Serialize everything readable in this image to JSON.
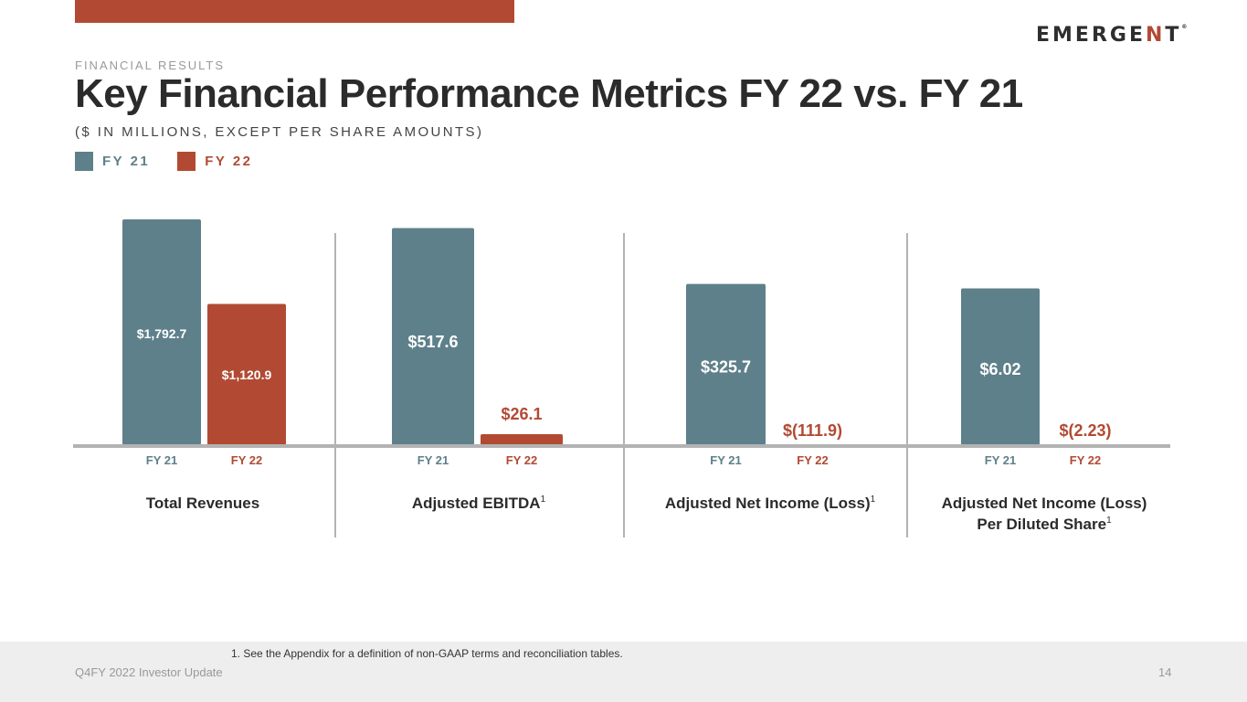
{
  "header": {
    "eyebrow": "FINANCIAL RESULTS",
    "title": "Key Financial Performance Metrics FY 22 vs. FY 21",
    "subtitle": "($ IN MILLIONS, EXCEPT PER SHARE AMOUNTS)",
    "logo_prefix": "EMERGE",
    "logo_accent": "N",
    "logo_suffix": "T"
  },
  "colors": {
    "fy21": "#5e808a",
    "fy22": "#b24a33",
    "baseline": "#b3b3b3",
    "divider": "#b3b3b3"
  },
  "chart_data": {
    "type": "bar",
    "title": "Key Financial Performance Metrics FY 22 vs. FY 21",
    "units": "$ in millions, except per share amounts",
    "legend": [
      "FY 21",
      "FY 22"
    ],
    "legend_position": "top-left",
    "grid": false,
    "series_names": [
      "FY 21",
      "FY 22"
    ],
    "panels": [
      {
        "category": "Total Revenues",
        "category_line2": "",
        "superscript": "",
        "values": [
          1792.7,
          1120.9
        ],
        "labels": [
          "$1,792.7",
          "$1,120.9"
        ],
        "ticks": [
          "FY 21",
          "FY 22"
        ],
        "label_inside": [
          true,
          true
        ]
      },
      {
        "category": "Adjusted  EBITDA",
        "category_line2": "",
        "superscript": "1",
        "values": [
          517.6,
          26.1
        ],
        "labels": [
          "$517.6",
          "$26.1"
        ],
        "ticks": [
          "FY 21",
          "FY 22"
        ],
        "label_inside": [
          true,
          false
        ]
      },
      {
        "category": "Adjusted Net Income (Loss)",
        "category_line2": "",
        "superscript": "1",
        "values": [
          325.7,
          -111.9
        ],
        "labels": [
          "$325.7",
          "$(111.9)"
        ],
        "ticks": [
          "FY 21",
          "FY 22"
        ],
        "label_inside": [
          true,
          false
        ]
      },
      {
        "category": "Adjusted Net Income (Loss)",
        "category_line2": "Per Diluted Share",
        "superscript": "1",
        "values": [
          6.02,
          -2.23
        ],
        "labels": [
          "$6.02",
          "$(2.23)"
        ],
        "ticks": [
          "FY 21",
          "FY 22"
        ],
        "label_inside": [
          true,
          false
        ]
      }
    ]
  },
  "footer": {
    "footnote": "1. See the Appendix for a definition of non-GAAP terms and reconciliation tables.",
    "left_text": "Q4FY 2022 Investor Update",
    "page_number": "14"
  }
}
